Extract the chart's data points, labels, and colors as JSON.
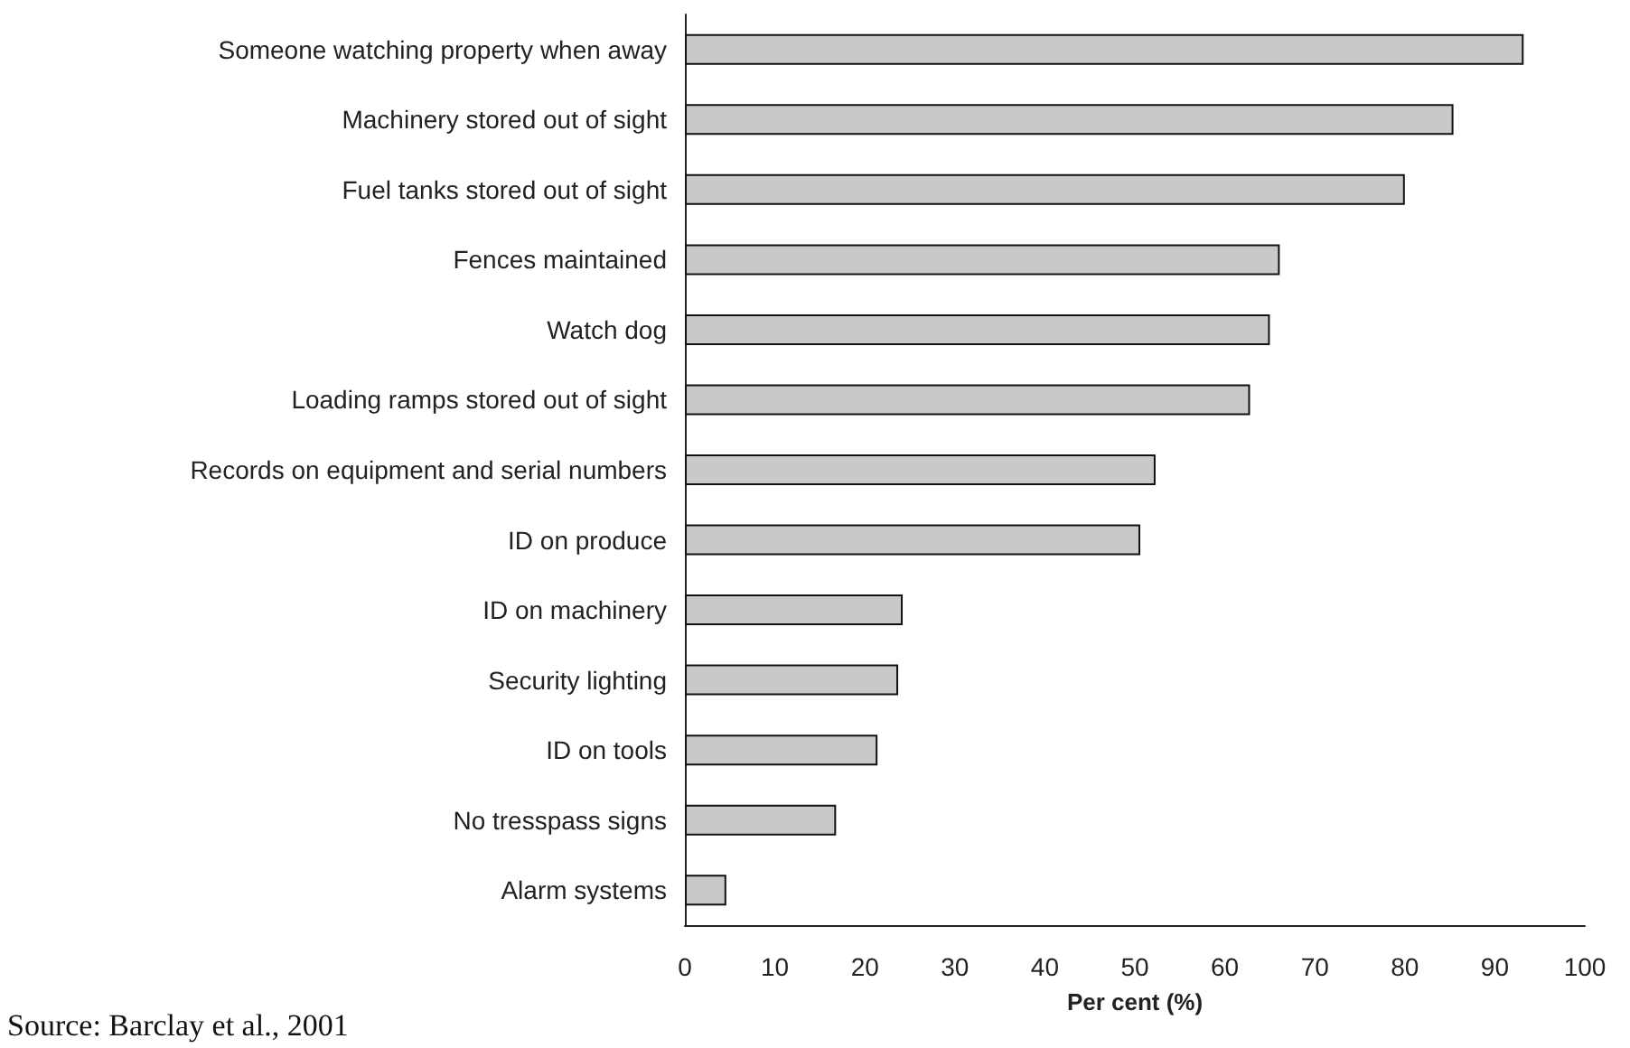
{
  "chart_data": {
    "type": "bar",
    "orientation": "horizontal",
    "categories": [
      "Someone watching property when away",
      "Machinery stored out of sight",
      "Fuel tanks stored out of sight",
      "Fences maintained",
      "Watch dog",
      "Loading ramps stored out of sight",
      "Records on equipment and serial numbers",
      "ID on produce",
      "ID on machinery",
      "Security lighting",
      "ID on tools",
      "No tresspass signs",
      "Alarm systems"
    ],
    "values": [
      93.2,
      85.4,
      80,
      66.1,
      65,
      62.8,
      52.3,
      50.6,
      24.2,
      23.7,
      21.4,
      16.8,
      4.6
    ],
    "color": "#c8c9cb",
    "xlim": [
      0,
      100
    ],
    "xticks": [
      0,
      10,
      20,
      30,
      40,
      50,
      60,
      70,
      80,
      90,
      100
    ],
    "xlabel": "Per cent (%)",
    "grid": false,
    "annotations": [
      "Source: Barclay et al., 2001"
    ]
  }
}
